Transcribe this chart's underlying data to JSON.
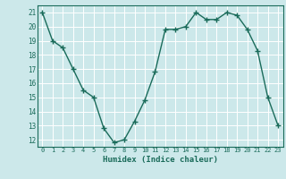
{
  "x": [
    0,
    1,
    2,
    3,
    4,
    5,
    6,
    7,
    8,
    9,
    10,
    11,
    12,
    13,
    14,
    15,
    16,
    17,
    18,
    19,
    20,
    21,
    22,
    23
  ],
  "y": [
    21.0,
    19.0,
    18.5,
    17.0,
    15.5,
    15.0,
    12.8,
    11.8,
    12.0,
    13.3,
    14.8,
    16.8,
    19.8,
    19.8,
    20.0,
    21.0,
    20.5,
    20.5,
    21.0,
    20.8,
    19.8,
    18.3,
    15.0,
    13.0
  ],
  "xlabel": "Humidex (Indice chaleur)",
  "xlim": [
    -0.5,
    23.5
  ],
  "ylim": [
    11.5,
    21.5
  ],
  "yticks": [
    12,
    13,
    14,
    15,
    16,
    17,
    18,
    19,
    20,
    21
  ],
  "xticks": [
    0,
    1,
    2,
    3,
    4,
    5,
    6,
    7,
    8,
    9,
    10,
    11,
    12,
    13,
    14,
    15,
    16,
    17,
    18,
    19,
    20,
    21,
    22,
    23
  ],
  "line_color": "#1a6b5a",
  "marker": "+",
  "bg_color": "#cce8ea",
  "grid_color": "#ffffff",
  "label_color": "#1a6b5a",
  "tick_label_color": "#1a6b5a"
}
